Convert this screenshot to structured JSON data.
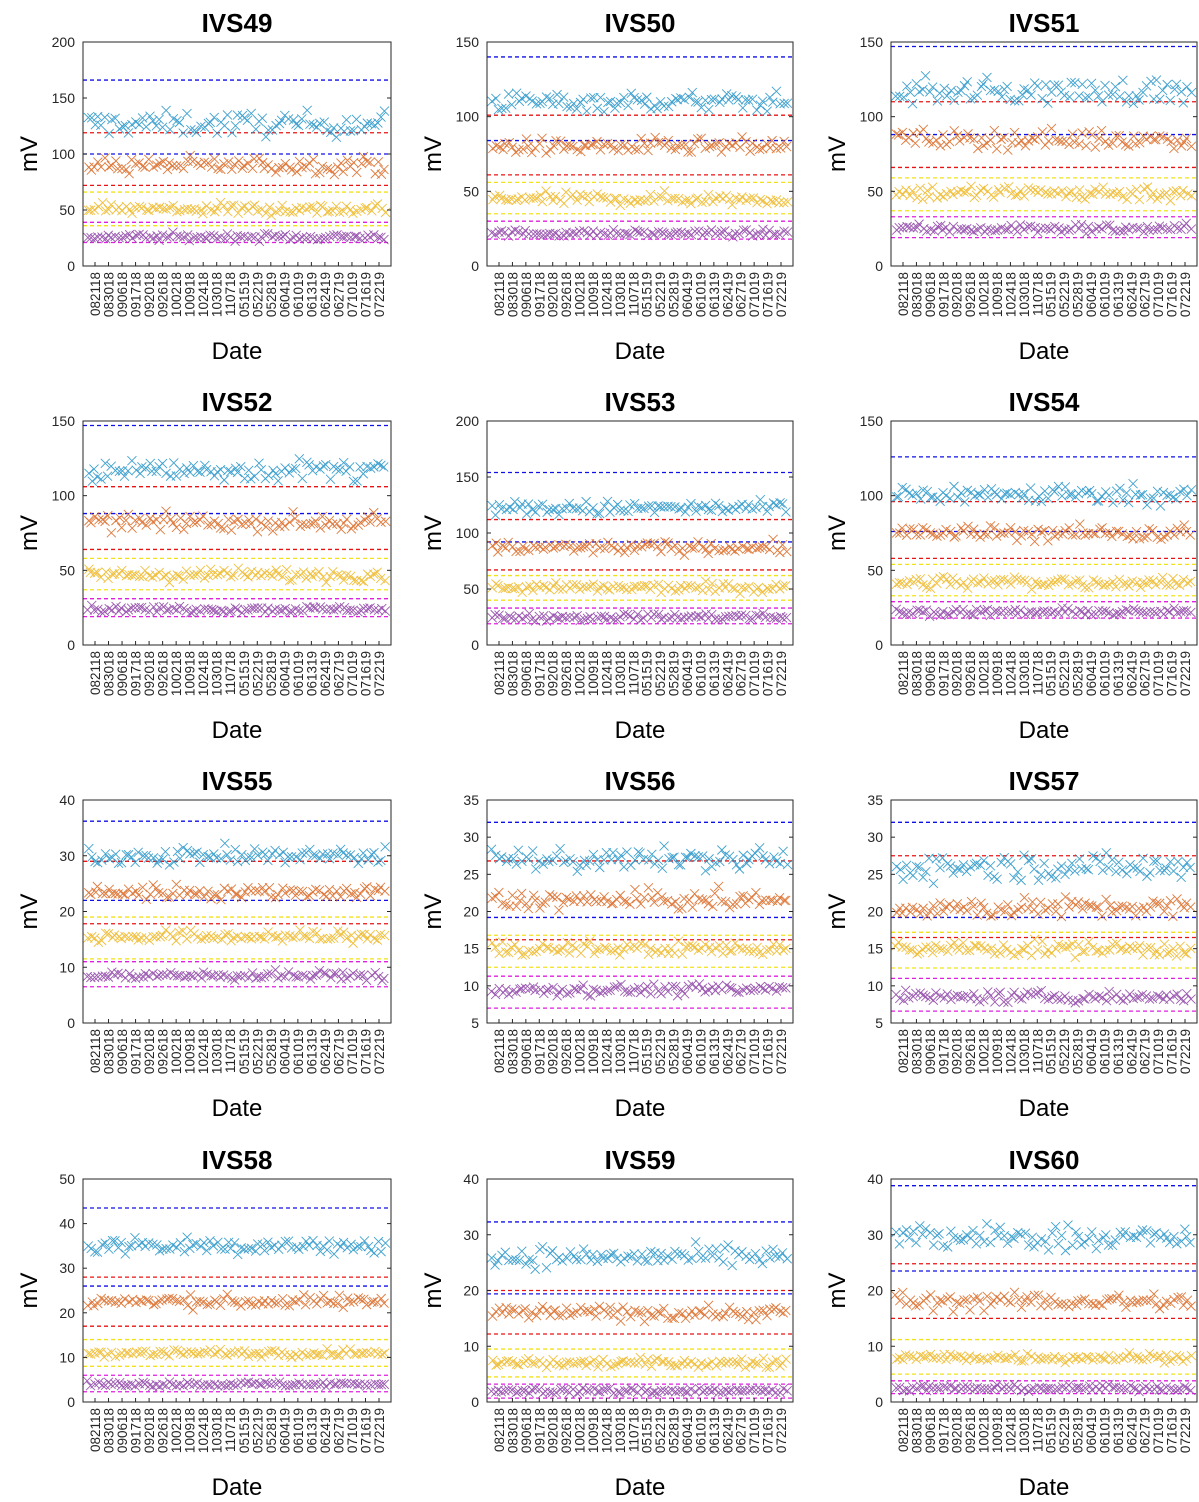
{
  "colors": {
    "series": [
      "#1f91c7",
      "#d9631b",
      "#edb41c",
      "#8a3da3"
    ],
    "limits": {
      "blue": "#1010e8",
      "red": "#e81414",
      "yellow": "#f2e21a",
      "magenta": "#e01ee0"
    }
  },
  "chart_data": [
    {
      "type": "scatter",
      "title": "IVS49",
      "xlabel": "Date",
      "ylabel": "mV",
      "ylim": [
        0,
        200
      ],
      "yticks": [
        0,
        50,
        100,
        150,
        200
      ],
      "categories": [
        "082118",
        "083018",
        "090618",
        "091718",
        "092018",
        "092618",
        "100218",
        "100918",
        "102418",
        "103018",
        "110718",
        "051519",
        "052219",
        "052819",
        "060419",
        "061019",
        "061319",
        "062419",
        "062719",
        "071019",
        "071619",
        "072219"
      ],
      "markers": "x",
      "grid": false,
      "series_levels": [
        127,
        90,
        51,
        26
      ],
      "spread": [
        10,
        7,
        5,
        3
      ],
      "limits": [
        {
          "color": "blue",
          "y": 166
        },
        {
          "color": "red",
          "y": 119
        },
        {
          "color": "blue",
          "y": 100
        },
        {
          "color": "red",
          "y": 72
        },
        {
          "color": "yellow",
          "y": 66
        },
        {
          "color": "yellow",
          "y": 36
        },
        {
          "color": "magenta",
          "y": 39
        },
        {
          "color": "magenta",
          "y": 21
        }
      ]
    },
    {
      "type": "scatter",
      "title": "IVS50",
      "xlabel": "Date",
      "ylabel": "mV",
      "ylim": [
        0,
        150
      ],
      "yticks": [
        0,
        50,
        100,
        150
      ],
      "categories": [
        "082118",
        "083018",
        "090618",
        "091718",
        "092018",
        "092618",
        "100218",
        "100918",
        "102418",
        "103018",
        "110718",
        "051519",
        "052219",
        "052819",
        "060419",
        "061019",
        "061319",
        "062419",
        "062719",
        "071019",
        "071619",
        "072219"
      ],
      "markers": "x",
      "grid": false,
      "series_levels": [
        110,
        80,
        45,
        22
      ],
      "spread": [
        6,
        5,
        4,
        2
      ],
      "limits": [
        {
          "color": "blue",
          "y": 140
        },
        {
          "color": "red",
          "y": 101
        },
        {
          "color": "blue",
          "y": 84
        },
        {
          "color": "red",
          "y": 61
        },
        {
          "color": "yellow",
          "y": 56
        },
        {
          "color": "yellow",
          "y": 35
        },
        {
          "color": "magenta",
          "y": 30
        },
        {
          "color": "magenta",
          "y": 18
        }
      ]
    },
    {
      "type": "scatter",
      "title": "IVS51",
      "xlabel": "Date",
      "ylabel": "mV",
      "ylim": [
        0,
        150
      ],
      "yticks": [
        0,
        50,
        100,
        150
      ],
      "categories": [
        "082118",
        "083018",
        "090618",
        "091718",
        "092018",
        "092618",
        "100218",
        "100918",
        "102418",
        "103018",
        "110718",
        "051519",
        "052219",
        "052819",
        "060419",
        "061019",
        "061319",
        "062419",
        "062719",
        "071019",
        "071619",
        "072219"
      ],
      "markers": "x",
      "grid": false,
      "series_levels": [
        117,
        85,
        49,
        25
      ],
      "spread": [
        8,
        6,
        5,
        3
      ],
      "limits": [
        {
          "color": "blue",
          "y": 147
        },
        {
          "color": "red",
          "y": 110
        },
        {
          "color": "blue",
          "y": 88
        },
        {
          "color": "red",
          "y": 66
        },
        {
          "color": "yellow",
          "y": 59
        },
        {
          "color": "yellow",
          "y": 37
        },
        {
          "color": "magenta",
          "y": 33
        },
        {
          "color": "magenta",
          "y": 19
        }
      ]
    },
    {
      "type": "scatter",
      "title": "IVS52",
      "xlabel": "Date",
      "ylabel": "mV",
      "ylim": [
        0,
        150
      ],
      "yticks": [
        0,
        50,
        100,
        150
      ],
      "categories": [
        "082118",
        "083018",
        "090618",
        "091718",
        "092018",
        "092618",
        "100218",
        "100918",
        "102418",
        "103018",
        "110718",
        "051519",
        "052219",
        "052819",
        "060419",
        "061019",
        "061319",
        "062419",
        "062719",
        "071019",
        "071619",
        "072219"
      ],
      "markers": "x",
      "grid": false,
      "series_levels": [
        117,
        82,
        47,
        24
      ],
      "spread": [
        7,
        5,
        4,
        2
      ],
      "limits": [
        {
          "color": "blue",
          "y": 147
        },
        {
          "color": "red",
          "y": 106
        },
        {
          "color": "blue",
          "y": 88
        },
        {
          "color": "red",
          "y": 64
        },
        {
          "color": "yellow",
          "y": 58
        },
        {
          "color": "yellow",
          "y": 37
        },
        {
          "color": "magenta",
          "y": 31
        },
        {
          "color": "magenta",
          "y": 19
        }
      ]
    },
    {
      "type": "scatter",
      "title": "IVS53",
      "xlabel": "Date",
      "ylabel": "mV",
      "ylim": [
        0,
        200
      ],
      "yticks": [
        0,
        50,
        100,
        150,
        200
      ],
      "categories": [
        "082118",
        "083018",
        "090618",
        "091718",
        "092018",
        "092618",
        "100218",
        "100918",
        "102418",
        "103018",
        "110718",
        "051519",
        "052219",
        "052819",
        "060419",
        "061019",
        "061319",
        "062419",
        "062719",
        "071019",
        "071619",
        "072219"
      ],
      "markers": "x",
      "grid": false,
      "series_levels": [
        122,
        87,
        51,
        25
      ],
      "spread": [
        6,
        5,
        4,
        3
      ],
      "limits": [
        {
          "color": "blue",
          "y": 154
        },
        {
          "color": "red",
          "y": 112
        },
        {
          "color": "blue",
          "y": 92
        },
        {
          "color": "red",
          "y": 67
        },
        {
          "color": "yellow",
          "y": 62
        },
        {
          "color": "yellow",
          "y": 40
        },
        {
          "color": "magenta",
          "y": 33
        },
        {
          "color": "magenta",
          "y": 19
        }
      ]
    },
    {
      "type": "scatter",
      "title": "IVS54",
      "xlabel": "Date",
      "ylabel": "mV",
      "ylim": [
        0,
        150
      ],
      "yticks": [
        0,
        50,
        100,
        150
      ],
      "categories": [
        "082118",
        "083018",
        "090618",
        "091718",
        "092018",
        "092618",
        "100218",
        "100918",
        "102418",
        "103018",
        "110718",
        "051519",
        "052219",
        "052819",
        "060419",
        "061019",
        "061319",
        "062419",
        "062719",
        "071019",
        "071619",
        "072219"
      ],
      "markers": "x",
      "grid": false,
      "series_levels": [
        101,
        75,
        42,
        22
      ],
      "spread": [
        6,
        5,
        4,
        2
      ],
      "limits": [
        {
          "color": "blue",
          "y": 126
        },
        {
          "color": "red",
          "y": 96
        },
        {
          "color": "blue",
          "y": 76
        },
        {
          "color": "red",
          "y": 58
        },
        {
          "color": "yellow",
          "y": 54
        },
        {
          "color": "yellow",
          "y": 33
        },
        {
          "color": "magenta",
          "y": 29
        },
        {
          "color": "magenta",
          "y": 18
        }
      ]
    },
    {
      "type": "scatter",
      "title": "IVS55",
      "xlabel": "Date",
      "ylabel": "mV",
      "ylim": [
        0,
        40
      ],
      "yticks": [
        0,
        10,
        20,
        30,
        40
      ],
      "categories": [
        "082118",
        "083018",
        "090618",
        "091718",
        "092018",
        "092618",
        "100218",
        "100918",
        "102418",
        "103018",
        "110718",
        "051519",
        "052219",
        "052819",
        "060419",
        "061019",
        "061319",
        "062419",
        "062719",
        "071019",
        "071619",
        "072219"
      ],
      "markers": "x",
      "grid": false,
      "series_levels": [
        30,
        23.5,
        15.5,
        8.5
      ],
      "spread": [
        1.5,
        1.2,
        1,
        0.8
      ],
      "limits": [
        {
          "color": "blue",
          "y": 36.2
        },
        {
          "color": "red",
          "y": 29
        },
        {
          "color": "blue",
          "y": 22
        },
        {
          "color": "red",
          "y": 17.8
        },
        {
          "color": "yellow",
          "y": 19
        },
        {
          "color": "yellow",
          "y": 11.5
        },
        {
          "color": "magenta",
          "y": 11
        },
        {
          "color": "magenta",
          "y": 6.5
        }
      ]
    },
    {
      "type": "scatter",
      "title": "IVS56",
      "xlabel": "Date",
      "ylabel": "mV",
      "ylim": [
        5,
        35
      ],
      "yticks": [
        5,
        10,
        15,
        20,
        25,
        30,
        35
      ],
      "categories": [
        "082118",
        "083018",
        "090618",
        "091718",
        "092018",
        "092618",
        "100218",
        "100918",
        "102418",
        "103018",
        "110718",
        "051519",
        "052219",
        "052819",
        "060419",
        "061019",
        "061319",
        "062419",
        "062719",
        "071019",
        "071619",
        "072219"
      ],
      "markers": "x",
      "grid": false,
      "series_levels": [
        27,
        21.5,
        15,
        9.5
      ],
      "spread": [
        1.4,
        1.2,
        0.9,
        0.7
      ],
      "limits": [
        {
          "color": "blue",
          "y": 32
        },
        {
          "color": "red",
          "y": 26.8
        },
        {
          "color": "blue",
          "y": 19.2
        },
        {
          "color": "red",
          "y": 16.2
        },
        {
          "color": "yellow",
          "y": 16.8
        },
        {
          "color": "yellow",
          "y": 12.5
        },
        {
          "color": "magenta",
          "y": 11.3
        },
        {
          "color": "magenta",
          "y": 7
        }
      ]
    },
    {
      "type": "scatter",
      "title": "IVS57",
      "xlabel": "Date",
      "ylabel": "mV",
      "ylim": [
        5,
        35
      ],
      "yticks": [
        5,
        10,
        15,
        20,
        25,
        30,
        35
      ],
      "categories": [
        "082118",
        "083018",
        "090618",
        "091718",
        "092018",
        "092618",
        "100218",
        "100918",
        "102418",
        "103018",
        "110718",
        "051519",
        "052219",
        "052819",
        "060419",
        "061019",
        "061319",
        "062419",
        "062719",
        "071019",
        "071619",
        "072219"
      ],
      "markers": "x",
      "grid": false,
      "series_levels": [
        26,
        20.5,
        15,
        8.5
      ],
      "spread": [
        1.6,
        1.3,
        1,
        0.7
      ],
      "limits": [
        {
          "color": "blue",
          "y": 32
        },
        {
          "color": "red",
          "y": 27.5
        },
        {
          "color": "blue",
          "y": 19.2
        },
        {
          "color": "red",
          "y": 16.5
        },
        {
          "color": "yellow",
          "y": 17.2
        },
        {
          "color": "yellow",
          "y": 12.4
        },
        {
          "color": "magenta",
          "y": 11
        },
        {
          "color": "magenta",
          "y": 6.6
        }
      ]
    },
    {
      "type": "scatter",
      "title": "IVS58",
      "xlabel": "Date",
      "ylabel": "mV",
      "ylim": [
        0,
        50
      ],
      "yticks": [
        0,
        10,
        20,
        30,
        40,
        50
      ],
      "categories": [
        "082118",
        "083018",
        "090618",
        "091718",
        "092018",
        "092618",
        "100218",
        "100918",
        "102418",
        "103018",
        "110718",
        "051519",
        "052219",
        "052819",
        "060419",
        "061019",
        "061319",
        "062419",
        "062719",
        "071019",
        "071619",
        "072219"
      ],
      "markers": "x",
      "grid": false,
      "series_levels": [
        35,
        22.5,
        11,
        4
      ],
      "spread": [
        1.8,
        1.3,
        0.8,
        0.5
      ],
      "limits": [
        {
          "color": "blue",
          "y": 43.5
        },
        {
          "color": "red",
          "y": 28
        },
        {
          "color": "blue",
          "y": 26
        },
        {
          "color": "red",
          "y": 17
        },
        {
          "color": "yellow",
          "y": 14
        },
        {
          "color": "yellow",
          "y": 8
        },
        {
          "color": "magenta",
          "y": 6
        },
        {
          "color": "magenta",
          "y": 2.3
        }
      ]
    },
    {
      "type": "scatter",
      "title": "IVS59",
      "xlabel": "Date",
      "ylabel": "mV",
      "ylim": [
        0,
        40
      ],
      "yticks": [
        0,
        10,
        20,
        30,
        40
      ],
      "categories": [
        "082118",
        "083018",
        "090618",
        "091718",
        "092018",
        "092618",
        "100218",
        "100918",
        "102418",
        "103018",
        "110718",
        "051519",
        "052219",
        "052819",
        "060419",
        "061019",
        "061319",
        "062419",
        "062719",
        "071019",
        "071619",
        "072219"
      ],
      "markers": "x",
      "grid": false,
      "series_levels": [
        26,
        16,
        7,
        2
      ],
      "spread": [
        1.7,
        1.2,
        0.8,
        0.5
      ],
      "limits": [
        {
          "color": "blue",
          "y": 32.3
        },
        {
          "color": "red",
          "y": 20
        },
        {
          "color": "blue",
          "y": 19.4
        },
        {
          "color": "red",
          "y": 12.2
        },
        {
          "color": "yellow",
          "y": 9.5
        },
        {
          "color": "yellow",
          "y": 4.5
        },
        {
          "color": "magenta",
          "y": 3.2
        },
        {
          "color": "magenta",
          "y": 0.7
        }
      ]
    },
    {
      "type": "scatter",
      "title": "IVS60",
      "xlabel": "Date",
      "ylabel": "mV",
      "ylim": [
        0,
        40
      ],
      "yticks": [
        0,
        10,
        20,
        30,
        40
      ],
      "categories": [
        "082118",
        "083018",
        "090618",
        "091718",
        "092018",
        "092618",
        "100218",
        "100918",
        "102418",
        "103018",
        "110718",
        "051519",
        "052219",
        "052819",
        "060419",
        "061019",
        "061319",
        "062419",
        "062719",
        "071019",
        "071619",
        "072219"
      ],
      "markers": "x",
      "grid": false,
      "series_levels": [
        29.5,
        18,
        8,
        2.5
      ],
      "spread": [
        2.2,
        1.4,
        0.8,
        0.5
      ],
      "limits": [
        {
          "color": "blue",
          "y": 38.8
        },
        {
          "color": "red",
          "y": 24.8
        },
        {
          "color": "blue",
          "y": 23.5
        },
        {
          "color": "red",
          "y": 15
        },
        {
          "color": "yellow",
          "y": 11.2
        },
        {
          "color": "yellow",
          "y": 5
        },
        {
          "color": "magenta",
          "y": 3.8
        },
        {
          "color": "magenta",
          "y": 1.5
        }
      ]
    }
  ]
}
